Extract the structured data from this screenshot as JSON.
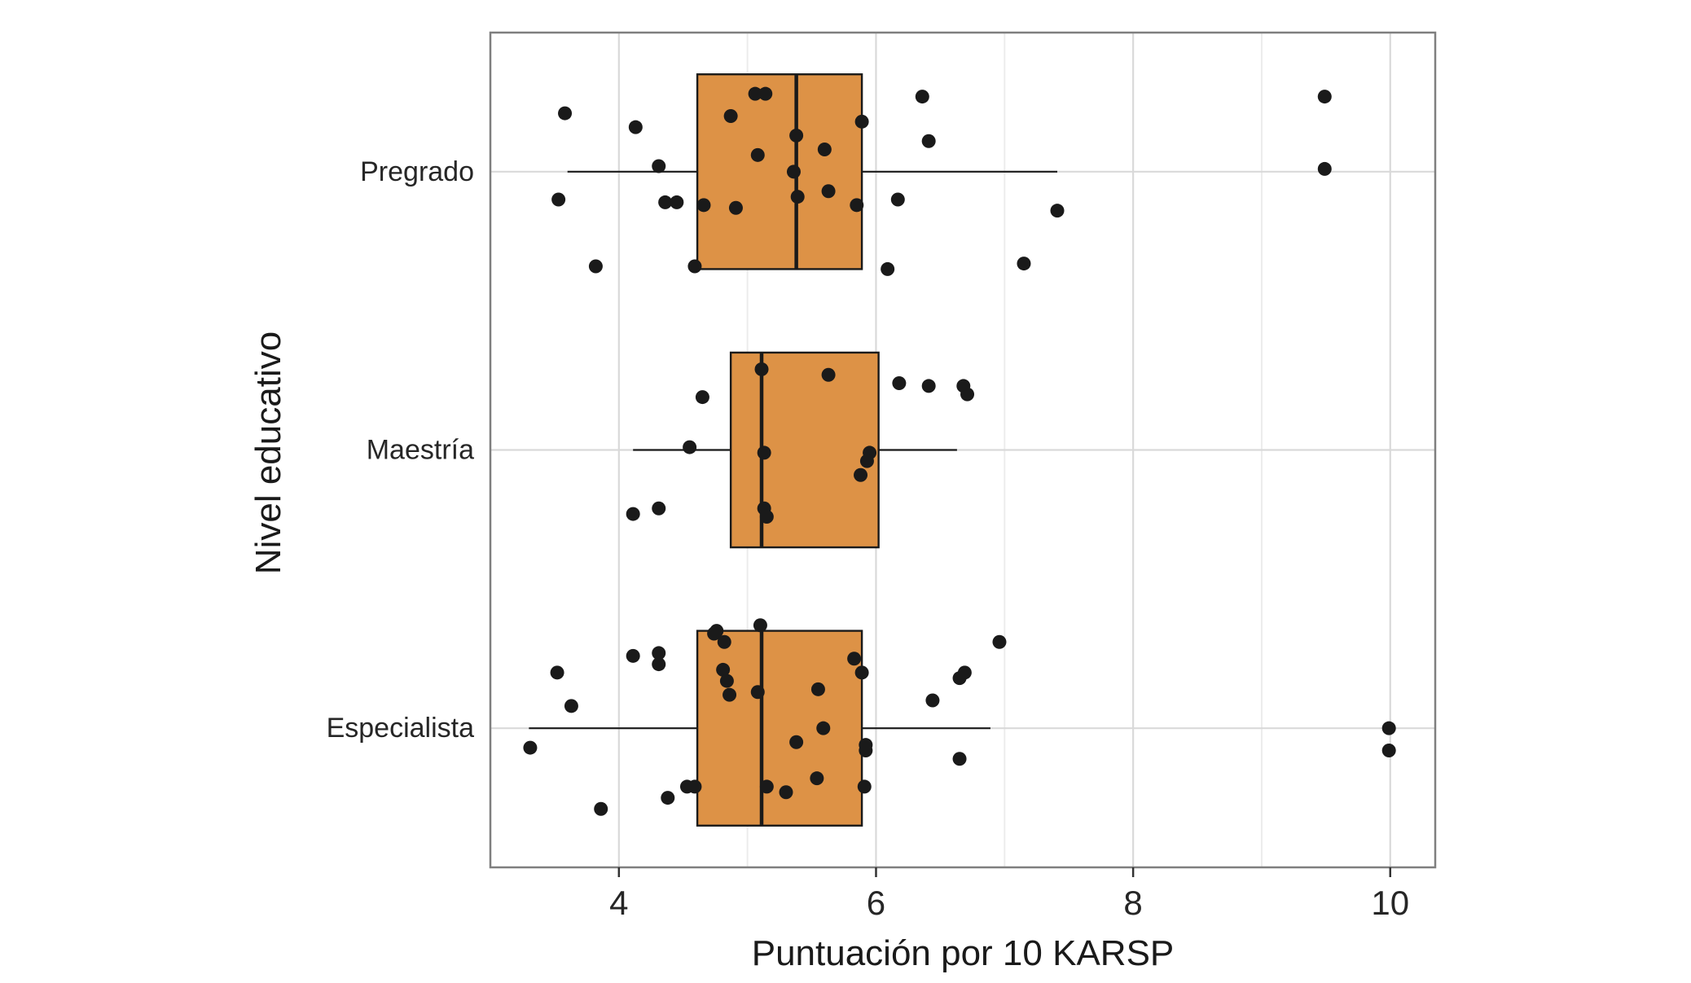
{
  "figure": {
    "background": "#FFFFFF"
  },
  "chart_data": {
    "type": "boxplot",
    "orientation": "horizontal",
    "title": "",
    "xlabel": "Puntuación por 10 KARSP",
    "ylabel": "Nivel educativo",
    "xlim": [
      3.0,
      10.35
    ],
    "xticks": [
      4,
      6,
      8,
      10
    ],
    "x_minor_gridlines": [
      5,
      7,
      9
    ],
    "grid": true,
    "legend": false,
    "categories": [
      "Pregrado",
      "Maestría",
      "Especialista"
    ],
    "colors": {
      "box_fill": "#DD9246",
      "box_stroke": "#1A1A1A",
      "point": "#1A1A1A",
      "grid_major": "#D9D9D9",
      "grid_minor": "#ECECEC",
      "panel_border": "#7F7F7F",
      "tick": "#333333",
      "text": "#262626"
    },
    "series": [
      {
        "name": "Pregrado",
        "box": {
          "whisker_min": 3.6,
          "q1": 4.61,
          "median": 5.38,
          "q3": 5.89,
          "whisker_max": 7.41
        },
        "points": [
          [
            3.58,
            -0.21
          ],
          [
            4.13,
            -0.16
          ],
          [
            4.31,
            -0.02
          ],
          [
            3.53,
            0.1
          ],
          [
            4.36,
            0.11
          ],
          [
            4.45,
            0.11
          ],
          [
            4.66,
            0.12
          ],
          [
            3.82,
            0.34
          ],
          [
            4.59,
            0.34
          ],
          [
            4.87,
            -0.2
          ],
          [
            5.06,
            -0.28
          ],
          [
            5.14,
            -0.28
          ],
          [
            5.08,
            -0.06
          ],
          [
            5.38,
            -0.13
          ],
          [
            5.36,
            0.0
          ],
          [
            5.39,
            0.09
          ],
          [
            4.91,
            0.13
          ],
          [
            5.6,
            -0.08
          ],
          [
            5.63,
            0.07
          ],
          [
            5.89,
            -0.18
          ],
          [
            5.85,
            0.12
          ],
          [
            6.36,
            -0.27
          ],
          [
            6.41,
            -0.11
          ],
          [
            6.17,
            0.1
          ],
          [
            6.09,
            0.35
          ],
          [
            7.15,
            0.33
          ],
          [
            7.41,
            0.14
          ],
          [
            9.49,
            -0.27
          ],
          [
            9.49,
            -0.01
          ]
        ]
      },
      {
        "name": "Maestría",
        "box": {
          "whisker_min": 4.11,
          "q1": 4.87,
          "median": 5.11,
          "q3": 6.02,
          "whisker_max": 6.63
        },
        "points": [
          [
            4.65,
            -0.19
          ],
          [
            4.55,
            -0.01
          ],
          [
            4.11,
            0.23
          ],
          [
            4.31,
            0.21
          ],
          [
            5.11,
            -0.29
          ],
          [
            5.13,
            0.01
          ],
          [
            5.13,
            0.21
          ],
          [
            5.15,
            0.24
          ],
          [
            5.63,
            -0.27
          ],
          [
            5.95,
            0.01
          ],
          [
            5.93,
            0.04
          ],
          [
            5.88,
            0.09
          ],
          [
            6.18,
            -0.24
          ],
          [
            6.41,
            -0.23
          ],
          [
            6.68,
            -0.23
          ],
          [
            6.71,
            -0.2
          ]
        ]
      },
      {
        "name": "Especialista",
        "box": {
          "whisker_min": 3.3,
          "q1": 4.61,
          "median": 5.11,
          "q3": 5.89,
          "whisker_max": 6.89
        },
        "points": [
          [
            3.31,
            0.07
          ],
          [
            3.52,
            -0.2
          ],
          [
            3.63,
            -0.08
          ],
          [
            3.86,
            0.29
          ],
          [
            4.11,
            -0.26
          ],
          [
            4.31,
            -0.27
          ],
          [
            4.31,
            -0.23
          ],
          [
            4.38,
            0.25
          ],
          [
            4.53,
            0.21
          ],
          [
            4.59,
            0.21
          ],
          [
            4.74,
            -0.34
          ],
          [
            4.76,
            -0.35
          ],
          [
            4.82,
            -0.31
          ],
          [
            4.81,
            -0.21
          ],
          [
            4.84,
            -0.17
          ],
          [
            4.86,
            -0.12
          ],
          [
            5.1,
            -0.37
          ],
          [
            5.08,
            -0.13
          ],
          [
            5.15,
            0.21
          ],
          [
            5.3,
            0.23
          ],
          [
            5.38,
            0.05
          ],
          [
            5.55,
            -0.14
          ],
          [
            5.59,
            0.0
          ],
          [
            5.54,
            0.18
          ],
          [
            5.83,
            -0.25
          ],
          [
            5.89,
            -0.2
          ],
          [
            5.92,
            0.06
          ],
          [
            5.92,
            0.08
          ],
          [
            5.91,
            0.21
          ],
          [
            6.44,
            -0.1
          ],
          [
            6.65,
            -0.18
          ],
          [
            6.69,
            -0.2
          ],
          [
            6.65,
            0.11
          ],
          [
            6.96,
            -0.31
          ],
          [
            9.99,
            0.0
          ],
          [
            9.99,
            0.08
          ]
        ]
      }
    ]
  }
}
